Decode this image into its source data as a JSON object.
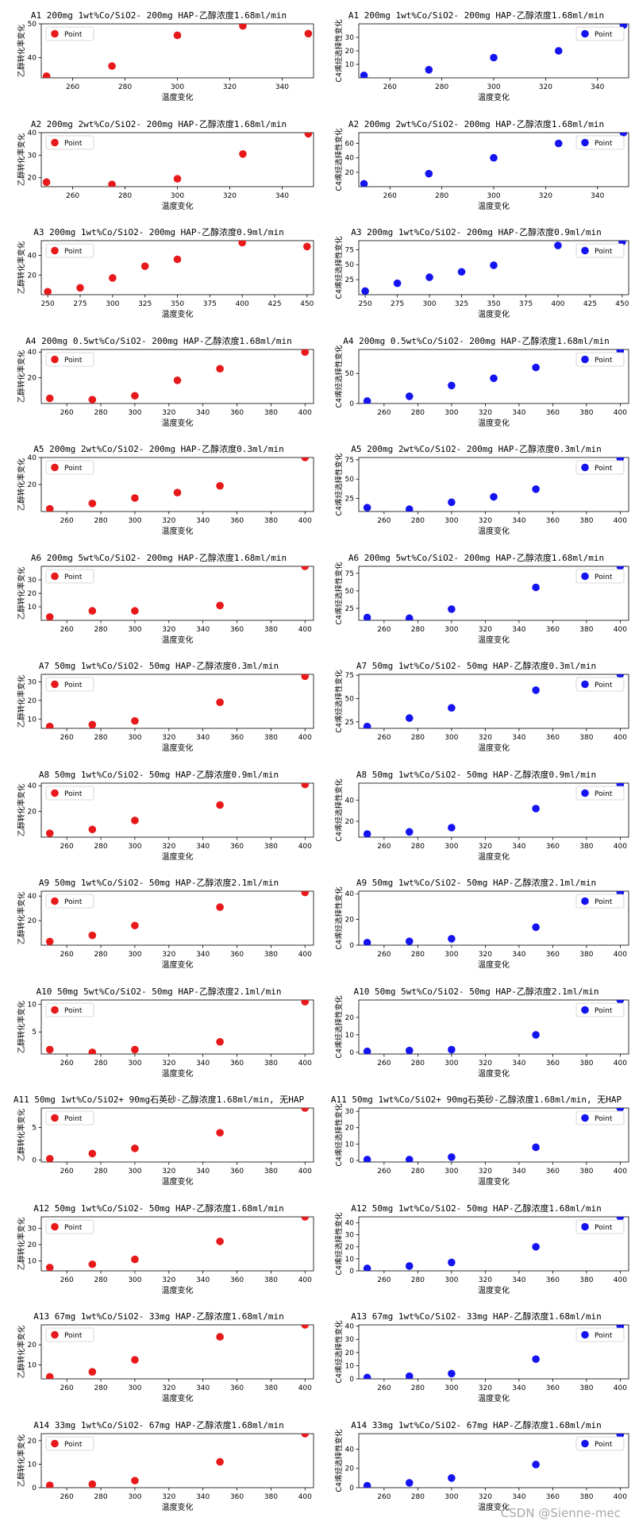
{
  "watermark": "CSDN @Sienne-mec",
  "legend_label": "Point",
  "xlabel": "温度变化",
  "ylabel_left": "乙醇转化率变化",
  "ylabel_right": "C4烯烃选择性变化",
  "colors": {
    "left": "#e8191b",
    "right": "#1414f0"
  },
  "chart_data": [
    {
      "id": "A1",
      "title": "A1  200mg 1wt%Co/SiO2- 200mg HAP-乙醇浓度1.68ml/min",
      "type": "scatter",
      "x": [
        250,
        275,
        300,
        325,
        350
      ],
      "left": {
        "y": [
          34.5,
          37.5,
          46.6,
          49.4,
          47.1
        ],
        "xlim": [
          248,
          352
        ],
        "ylim": [
          34,
          50
        ],
        "yticks": [
          40,
          50
        ],
        "xticks": [
          260,
          280,
          300,
          320,
          340
        ]
      },
      "right": {
        "y": [
          1.8,
          6,
          15,
          20,
          39
        ],
        "xlim": [
          248,
          352
        ],
        "ylim": [
          0,
          40
        ],
        "yticks": [
          10,
          20,
          30
        ],
        "xticks": [
          260,
          280,
          300,
          320,
          340
        ]
      }
    },
    {
      "id": "A2",
      "title": "A2  200mg 2wt%Co/SiO2- 200mg HAP-乙醇浓度1.68ml/min",
      "type": "scatter",
      "x": [
        250,
        275,
        300,
        325,
        350
      ],
      "left": {
        "y": [
          18,
          17,
          19.5,
          30.5,
          39.5
        ],
        "xlim": [
          248,
          352
        ],
        "ylim": [
          16,
          40
        ],
        "yticks": [
          20,
          30,
          40
        ],
        "xticks": [
          260,
          280,
          300,
          320,
          340
        ]
      },
      "right": {
        "y": [
          4,
          18,
          40,
          60,
          75
        ],
        "xlim": [
          248,
          352
        ],
        "ylim": [
          0,
          75
        ],
        "yticks": [
          20,
          40,
          60
        ],
        "xticks": [
          260,
          280,
          300,
          320,
          340
        ]
      }
    },
    {
      "id": "A3",
      "title": "A3  200mg 1wt%Co/SiO2- 200mg HAP-乙醇浓度0.9ml/min",
      "type": "scatter",
      "x": [
        250,
        275,
        300,
        325,
        350,
        400,
        450
      ],
      "left": {
        "y": [
          3,
          7,
          17,
          29,
          36,
          53,
          49
        ],
        "xlim": [
          245,
          455
        ],
        "ylim": [
          0,
          55
        ],
        "yticks": [
          20,
          40
        ],
        "xticks": [
          250,
          275,
          300,
          325,
          350,
          375,
          400,
          425,
          450
        ]
      },
      "right": {
        "y": [
          6,
          19,
          29,
          38,
          49,
          82,
          88
        ],
        "xlim": [
          245,
          455
        ],
        "ylim": [
          0,
          90
        ],
        "yticks": [
          25,
          50,
          75
        ],
        "xticks": [
          250,
          275,
          300,
          325,
          350,
          375,
          400,
          425,
          450
        ]
      }
    },
    {
      "id": "A4",
      "title": "A4  200mg 0.5wt%Co/SiO2- 200mg HAP-乙醇浓度1.68ml/min",
      "type": "scatter",
      "x": [
        250,
        275,
        300,
        325,
        350,
        400
      ],
      "left": {
        "y": [
          4,
          3,
          6,
          18,
          27,
          40
        ],
        "xlim": [
          245,
          405
        ],
        "ylim": [
          0,
          42
        ],
        "yticks": [
          20,
          40
        ],
        "xticks": [
          260,
          280,
          300,
          320,
          340,
          360,
          380,
          400
        ]
      },
      "right": {
        "y": [
          4,
          12,
          30,
          42,
          60,
          88
        ],
        "xlim": [
          245,
          405
        ],
        "ylim": [
          0,
          90
        ],
        "yticks": [
          0,
          50
        ],
        "xticks": [
          260,
          280,
          300,
          320,
          340,
          360,
          380,
          400
        ]
      }
    },
    {
      "id": "A5",
      "title": "A5  200mg 2wt%Co/SiO2- 200mg HAP-乙醇浓度0.3ml/min",
      "type": "scatter",
      "x": [
        250,
        275,
        300,
        325,
        350,
        400
      ],
      "left": {
        "y": [
          2,
          6,
          10,
          14,
          19,
          40
        ],
        "xlim": [
          245,
          405
        ],
        "ylim": [
          0,
          40
        ],
        "yticks": [
          20,
          40
        ],
        "xticks": [
          260,
          280,
          300,
          320,
          340,
          360,
          380,
          400
        ]
      },
      "right": {
        "y": [
          13,
          11,
          20,
          27,
          37,
          77
        ],
        "xlim": [
          245,
          405
        ],
        "ylim": [
          8,
          78
        ],
        "yticks": [
          25,
          50,
          75
        ],
        "xticks": [
          260,
          280,
          300,
          320,
          340,
          360,
          380,
          400
        ]
      }
    },
    {
      "id": "A6",
      "title": "A6  200mg 5wt%Co/SiO2- 200mg HAP-乙醇浓度1.68ml/min",
      "type": "scatter",
      "x": [
        250,
        275,
        300,
        350,
        400
      ],
      "left": {
        "y": [
          2.5,
          7,
          7,
          11,
          40
        ],
        "xlim": [
          245,
          405
        ],
        "ylim": [
          0,
          40
        ],
        "yticks": [
          10,
          20,
          30
        ],
        "xticks": [
          260,
          280,
          300,
          320,
          340,
          360,
          380,
          400
        ]
      },
      "right": {
        "y": [
          12,
          11,
          24,
          55,
          85
        ],
        "xlim": [
          245,
          405
        ],
        "ylim": [
          8,
          85
        ],
        "yticks": [
          25,
          50,
          75
        ],
        "xticks": [
          260,
          280,
          300,
          320,
          340,
          360,
          380,
          400
        ]
      }
    },
    {
      "id": "A7",
      "title": "A7  50mg 1wt%Co/SiO2- 50mg HAP-乙醇浓度0.3ml/min",
      "type": "scatter",
      "x": [
        250,
        275,
        300,
        350,
        400
      ],
      "left": {
        "y": [
          6,
          7,
          9,
          19,
          33
        ],
        "xlim": [
          245,
          405
        ],
        "ylim": [
          5,
          34
        ],
        "yticks": [
          10,
          20,
          30
        ],
        "xticks": [
          260,
          280,
          300,
          320,
          340,
          360,
          380,
          400
        ]
      },
      "right": {
        "y": [
          20,
          29,
          40,
          59,
          76
        ],
        "xlim": [
          245,
          405
        ],
        "ylim": [
          18,
          76
        ],
        "yticks": [
          25,
          50,
          75
        ],
        "xticks": [
          260,
          280,
          300,
          320,
          340,
          360,
          380,
          400
        ]
      }
    },
    {
      "id": "A8",
      "title": "A8  50mg 1wt%Co/SiO2- 50mg HAP-乙醇浓度0.9ml/min",
      "type": "scatter",
      "x": [
        250,
        275,
        300,
        350,
        400
      ],
      "left": {
        "y": [
          3,
          6,
          13,
          25,
          41
        ],
        "xlim": [
          245,
          405
        ],
        "ylim": [
          0,
          42
        ],
        "yticks": [
          20,
          40
        ],
        "xticks": [
          260,
          280,
          300,
          320,
          340,
          360,
          380,
          400
        ]
      },
      "right": {
        "y": [
          8,
          10,
          14,
          32,
          55
        ],
        "xlim": [
          245,
          405
        ],
        "ylim": [
          5,
          56
        ],
        "yticks": [
          20,
          40
        ],
        "xticks": [
          260,
          280,
          300,
          320,
          340,
          360,
          380,
          400
        ]
      }
    },
    {
      "id": "A9",
      "title": "A9  50mg 1wt%Co/SiO2- 50mg HAP-乙醇浓度2.1ml/min",
      "type": "scatter",
      "x": [
        250,
        275,
        300,
        350,
        400
      ],
      "left": {
        "y": [
          3,
          8,
          16,
          31,
          43
        ],
        "xlim": [
          245,
          405
        ],
        "ylim": [
          0,
          44
        ],
        "yticks": [
          20,
          40
        ],
        "xticks": [
          260,
          280,
          300,
          320,
          340,
          360,
          380,
          400
        ]
      },
      "right": {
        "y": [
          2,
          3,
          5,
          14,
          41
        ],
        "xlim": [
          245,
          405
        ],
        "ylim": [
          0,
          42
        ],
        "yticks": [
          0,
          20,
          40
        ],
        "xticks": [
          260,
          280,
          300,
          320,
          340,
          360,
          380,
          400
        ]
      }
    },
    {
      "id": "A10",
      "title": "A10  50mg 5wt%Co/SiO2- 50mg HAP-乙醇浓度2.1ml/min",
      "type": "scatter",
      "x": [
        250,
        275,
        300,
        350,
        400
      ],
      "left": {
        "y": [
          1.8,
          1.3,
          1.8,
          3.2,
          10.5
        ],
        "xlim": [
          245,
          405
        ],
        "ylim": [
          1,
          10.8
        ],
        "yticks": [
          5,
          10
        ],
        "xticks": [
          260,
          280,
          300,
          320,
          340,
          360,
          380,
          400
        ]
      },
      "right": {
        "y": [
          0.5,
          1,
          1.5,
          10,
          30
        ],
        "xlim": [
          245,
          405
        ],
        "ylim": [
          -1,
          30
        ],
        "yticks": [
          0,
          10,
          20
        ],
        "xticks": [
          260,
          280,
          300,
          320,
          340,
          360,
          380,
          400
        ]
      }
    },
    {
      "id": "A11",
      "title": "A11  50mg 1wt%Co/SiO2+ 90mg石英砂-乙醇浓度1.68ml/min, 无HAP",
      "type": "scatter",
      "x": [
        250,
        275,
        300,
        350,
        400
      ],
      "left": {
        "y": [
          0.2,
          1,
          1.8,
          4.2,
          8
        ],
        "xlim": [
          245,
          405
        ],
        "ylim": [
          -0.3,
          8
        ],
        "yticks": [
          0,
          5
        ],
        "xticks": [
          260,
          280,
          300,
          320,
          340,
          360,
          380,
          400
        ]
      },
      "right": {
        "y": [
          0.5,
          0.5,
          2,
          8,
          32
        ],
        "xlim": [
          245,
          405
        ],
        "ylim": [
          -1,
          32
        ],
        "yticks": [
          0,
          10,
          20,
          30
        ],
        "xticks": [
          260,
          280,
          300,
          320,
          340,
          360,
          380,
          400
        ]
      }
    },
    {
      "id": "A12",
      "title": "A12  50mg 1wt%Co/SiO2- 50mg HAP-乙醇浓度1.68ml/min",
      "type": "scatter",
      "x": [
        250,
        275,
        300,
        350,
        400
      ],
      "left": {
        "y": [
          6,
          8,
          11,
          22,
          37
        ],
        "xlim": [
          245,
          405
        ],
        "ylim": [
          4,
          37
        ],
        "yticks": [
          10,
          20,
          30
        ],
        "xticks": [
          260,
          280,
          300,
          320,
          340,
          360,
          380,
          400
        ]
      },
      "right": {
        "y": [
          2,
          4,
          7,
          20,
          45
        ],
        "xlim": [
          245,
          405
        ],
        "ylim": [
          0,
          45
        ],
        "yticks": [
          0,
          10,
          20,
          30,
          40
        ],
        "xticks": [
          260,
          280,
          300,
          320,
          340,
          360,
          380,
          400
        ]
      }
    },
    {
      "id": "A13",
      "title": "A13  67mg 1wt%Co/SiO2- 33mg HAP-乙醇浓度1.68ml/min",
      "type": "scatter",
      "x": [
        250,
        275,
        300,
        350,
        400
      ],
      "left": {
        "y": [
          4,
          6.5,
          12.5,
          24,
          30
        ],
        "xlim": [
          245,
          405
        ],
        "ylim": [
          3,
          30
        ],
        "yticks": [
          10,
          20
        ],
        "xticks": [
          260,
          280,
          300,
          320,
          340,
          360,
          380,
          400
        ]
      },
      "right": {
        "y": [
          1,
          2,
          4,
          15,
          40
        ],
        "xlim": [
          245,
          405
        ],
        "ylim": [
          0,
          41
        ],
        "yticks": [
          0,
          10,
          20,
          30,
          40
        ],
        "xticks": [
          260,
          280,
          300,
          320,
          340,
          360,
          380,
          400
        ]
      }
    },
    {
      "id": "A14",
      "title": "A14  33mg 1wt%Co/SiO2- 67mg HAP-乙醇浓度1.68ml/min",
      "type": "scatter",
      "x": [
        250,
        275,
        300,
        350,
        400
      ],
      "left": {
        "y": [
          1,
          1.5,
          3,
          11,
          23
        ],
        "xlim": [
          245,
          405
        ],
        "ylim": [
          0,
          23
        ],
        "yticks": [
          0,
          10,
          20
        ],
        "xticks": [
          260,
          280,
          300,
          320,
          340,
          360,
          380,
          400
        ]
      },
      "right": {
        "y": [
          2,
          5,
          10,
          24,
          55
        ],
        "xlim": [
          245,
          405
        ],
        "ylim": [
          0,
          56
        ],
        "yticks": [
          0,
          20,
          40
        ],
        "xticks": [
          260,
          280,
          300,
          320,
          340,
          360,
          380,
          400
        ]
      }
    }
  ]
}
